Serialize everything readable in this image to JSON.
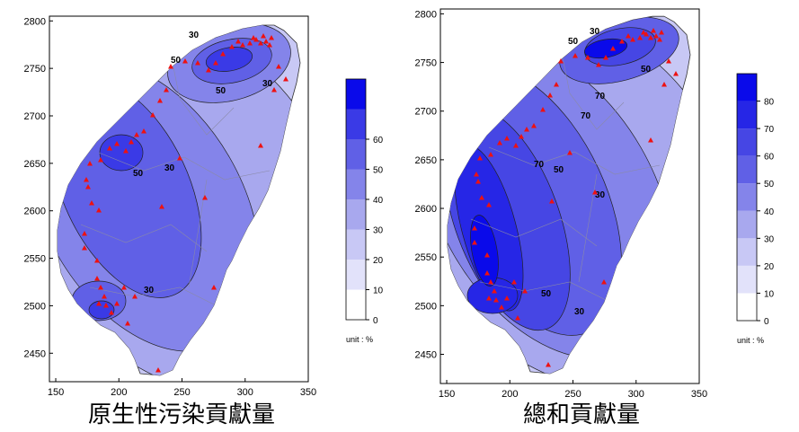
{
  "chart_data": [
    {
      "type": "heatmap",
      "caption": "原生性污染貢獻量",
      "x_ticks": [
        150,
        200,
        250,
        300,
        350
      ],
      "y_ticks": [
        2450,
        2500,
        2550,
        2600,
        2650,
        2700,
        2750,
        2800
      ],
      "xlim": [
        145,
        350
      ],
      "ylim": [
        2420,
        2805
      ],
      "colorbar": {
        "ticks": [
          0,
          10,
          20,
          30,
          40,
          50,
          60
        ],
        "max": 70,
        "unit": "unit : %",
        "colors": [
          "#ffffff",
          "#e2e2fa",
          "#c8c8f5",
          "#a8a8ee",
          "#8484ea",
          "#6060e6",
          "#3a3ae6",
          "#0a0aea"
        ]
      },
      "contour_labels": [
        "30",
        "50",
        "50",
        "30",
        "50",
        "30",
        "30"
      ],
      "peak_regions": [
        {
          "x": 280,
          "y": 2755,
          "level": 60
        },
        {
          "x": 190,
          "y": 2660,
          "level": 60
        },
        {
          "x": 185,
          "y": 2500,
          "level": 50
        }
      ]
    },
    {
      "type": "heatmap",
      "caption": "總和貢獻量",
      "x_ticks": [
        150,
        200,
        250,
        300,
        350
      ],
      "y_ticks": [
        2450,
        2500,
        2550,
        2600,
        2650,
        2700,
        2750,
        2800
      ],
      "xlim": [
        145,
        350
      ],
      "ylim": [
        2420,
        2805
      ],
      "colorbar": {
        "ticks": [
          0,
          10,
          20,
          30,
          40,
          50,
          60,
          70,
          80
        ],
        "max": 90,
        "unit": "unit : %",
        "colors": [
          "#ffffff",
          "#e2e2fa",
          "#c8c8f5",
          "#a8a8ee",
          "#8484ea",
          "#6060e6",
          "#4646e4",
          "#2626e6",
          "#0a0aea"
        ]
      },
      "contour_labels": [
        "30",
        "50",
        "70",
        "50",
        "70",
        "70",
        "50",
        "30",
        "50",
        "30"
      ],
      "peak_regions": [
        {
          "x": 290,
          "y": 2760,
          "level": 80
        },
        {
          "x": 175,
          "y": 2580,
          "level": 80
        },
        {
          "x": 180,
          "y": 2500,
          "level": 70
        }
      ]
    }
  ]
}
